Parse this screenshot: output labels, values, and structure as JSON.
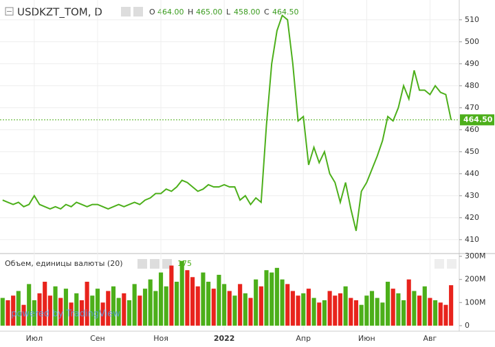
{
  "chart_data": [
    {
      "type": "line",
      "title": "USDKZT_TOM, D",
      "header": {
        "o_label": "O",
        "open": "464.00",
        "h_label": "H",
        "high": "465.00",
        "l_label": "L",
        "low": "458.00",
        "c_label": "C",
        "close": "464.50"
      },
      "categories": [
        null,
        null,
        null,
        null,
        null,
        null,
        "Июл",
        null,
        null,
        null,
        null,
        null,
        null,
        null,
        null,
        null,
        null,
        null,
        "Сен",
        null,
        null,
        null,
        null,
        null,
        null,
        null,
        null,
        null,
        null,
        null,
        "Ноя",
        null,
        null,
        null,
        null,
        null,
        null,
        null,
        null,
        null,
        null,
        null,
        "2022",
        null,
        null,
        null,
        null,
        null,
        null,
        null,
        null,
        null,
        null,
        null,
        null,
        null,
        null,
        "Апр",
        null,
        null,
        null,
        null,
        null,
        null,
        null,
        null,
        null,
        null,
        null,
        "Июн",
        null,
        null,
        null,
        null,
        null,
        null,
        null,
        null,
        null,
        null,
        null,
        "Авг",
        null,
        null,
        null,
        null
      ],
      "series": [
        {
          "name": "USDKZT_TOM",
          "color": "#4caf1a",
          "values": [
            428,
            427,
            426,
            427,
            425,
            426,
            430,
            426,
            425,
            424,
            425,
            424,
            426,
            425,
            427,
            426,
            425,
            426,
            426,
            425,
            424,
            425,
            426,
            425,
            426,
            427,
            426,
            428,
            429,
            431,
            431,
            433,
            432,
            434,
            437,
            436,
            434,
            432,
            433,
            435,
            434,
            434,
            435,
            434,
            434,
            428,
            430,
            426,
            429,
            427,
            462,
            490,
            505,
            512,
            510,
            490,
            464,
            466,
            444,
            452,
            445,
            450,
            440,
            436,
            427,
            436,
            424,
            414,
            432,
            436,
            442,
            448,
            455,
            466,
            464,
            470,
            480,
            474,
            487,
            478,
            478,
            476,
            480,
            477,
            476,
            464.5
          ]
        }
      ],
      "ylim": [
        404,
        519
      ],
      "yticks": [
        410,
        420,
        430,
        440,
        450,
        460,
        470,
        480,
        490,
        500,
        510
      ],
      "grid": true
    },
    {
      "type": "bar",
      "title": "Объем, единицы валюты (20)",
      "up_color": "#4caf1a",
      "down_color": "#e8231c",
      "values": [
        120,
        110,
        130,
        150,
        90,
        180,
        110,
        140,
        190,
        130,
        170,
        120,
        160,
        100,
        140,
        110,
        190,
        130,
        160,
        100,
        150,
        170,
        120,
        140,
        110,
        180,
        130,
        160,
        200,
        150,
        230,
        170,
        260,
        190,
        280,
        240,
        210,
        170,
        230,
        190,
        160,
        220,
        180,
        150,
        130,
        180,
        140,
        120,
        200,
        170,
        240,
        230,
        250,
        200,
        180,
        150,
        130,
        140,
        160,
        120,
        100,
        110,
        150,
        130,
        140,
        170,
        120,
        110,
        90,
        130,
        150,
        120,
        100,
        190,
        160,
        140,
        110,
        200,
        150,
        130,
        170,
        120,
        110,
        100,
        90,
        175
      ],
      "ylim": [
        -24,
        309
      ],
      "yticks": [
        {
          "value": 0,
          "label": "0"
        },
        {
          "value": 100,
          "label": "100M"
        },
        {
          "value": 200,
          "label": "200M"
        },
        {
          "value": 300,
          "label": "300M"
        }
      ],
      "watermark": "powered by TradingView"
    }
  ]
}
